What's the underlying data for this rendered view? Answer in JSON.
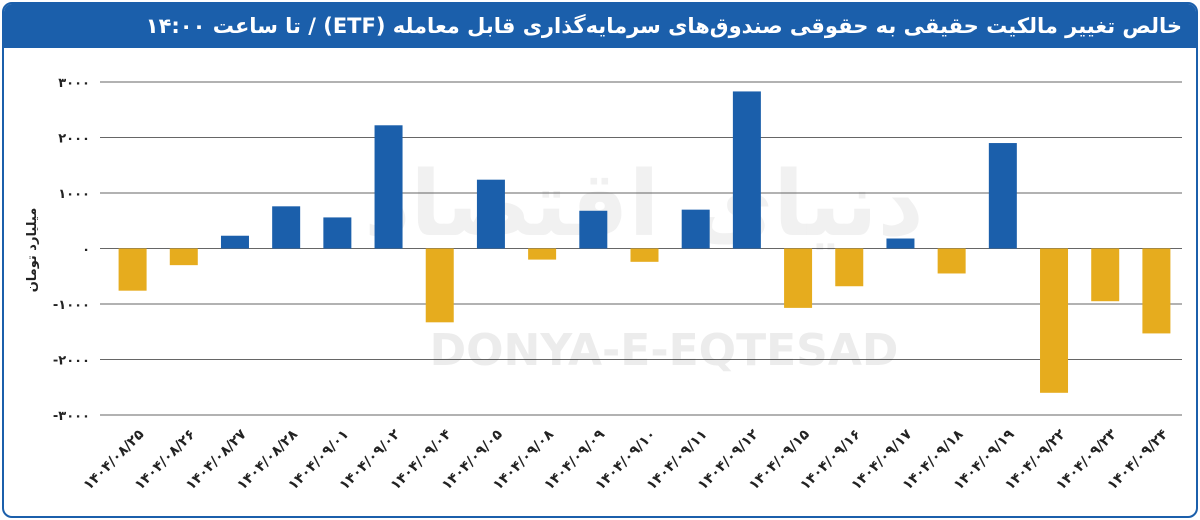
{
  "chart_data": {
    "type": "bar",
    "title": "خالص تغییر مالکیت حقیقی به حقوقی صندوق‌های سرمایه‌گذاری قابل معامله (ETF) / تا ساعت ۱۴:۰۰",
    "ylabel": "میلیارد تومان",
    "watermark": "DONYA-E-EQTESAD",
    "watermark_fa": "دنیای اقتصاد",
    "categories": [
      "۱۴۰۴/۰۸/۲۵",
      "۱۴۰۴/۰۸/۲۶",
      "۱۴۰۴/۰۸/۲۷",
      "۱۴۰۴/۰۸/۲۸",
      "۱۴۰۴/۰۹/۰۱",
      "۱۴۰۴/۰۹/۰۲",
      "۱۴۰۴/۰۹/۰۴",
      "۱۴۰۴/۰۹/۰۵",
      "۱۴۰۴/۰۹/۰۸",
      "۱۴۰۴/۰۹/۰۹",
      "۱۴۰۴/۰۹/۱۰",
      "۱۴۰۴/۰۹/۱۱",
      "۱۴۰۴/۰۹/۱۲",
      "۱۴۰۴/۰۹/۱۵",
      "۱۴۰۴/۰۹/۱۶",
      "۱۴۰۴/۰۹/۱۷",
      "۱۴۰۴/۰۹/۱۸",
      "۱۴۰۴/۰۹/۱۹",
      "۱۴۰۴/۰۹/۲۲",
      "۱۴۰۴/۰۹/۲۳",
      "۱۴۰۴/۰۹/۲۴"
    ],
    "values": [
      -760,
      -300,
      230,
      760,
      560,
      2220,
      -1330,
      1240,
      -200,
      680,
      -240,
      700,
      2830,
      -1070,
      -680,
      180,
      -450,
      1900,
      -2600,
      -950,
      -1530
    ],
    "colors": {
      "positive": "#1b5fab",
      "negative": "#e6ac1e"
    },
    "ylim": [
      -3000,
      3000
    ],
    "yticks": [
      {
        "value": 3000,
        "label": "۳۰۰۰"
      },
      {
        "value": 2000,
        "label": "۲۰۰۰"
      },
      {
        "value": 1000,
        "label": "۱۰۰۰"
      },
      {
        "value": 0,
        "label": "۰"
      },
      {
        "value": -1000,
        "label": "-۱۰۰۰"
      },
      {
        "value": -2000,
        "label": "-۲۰۰۰"
      },
      {
        "value": -3000,
        "label": "-۳۰۰۰"
      }
    ],
    "grid": true
  }
}
